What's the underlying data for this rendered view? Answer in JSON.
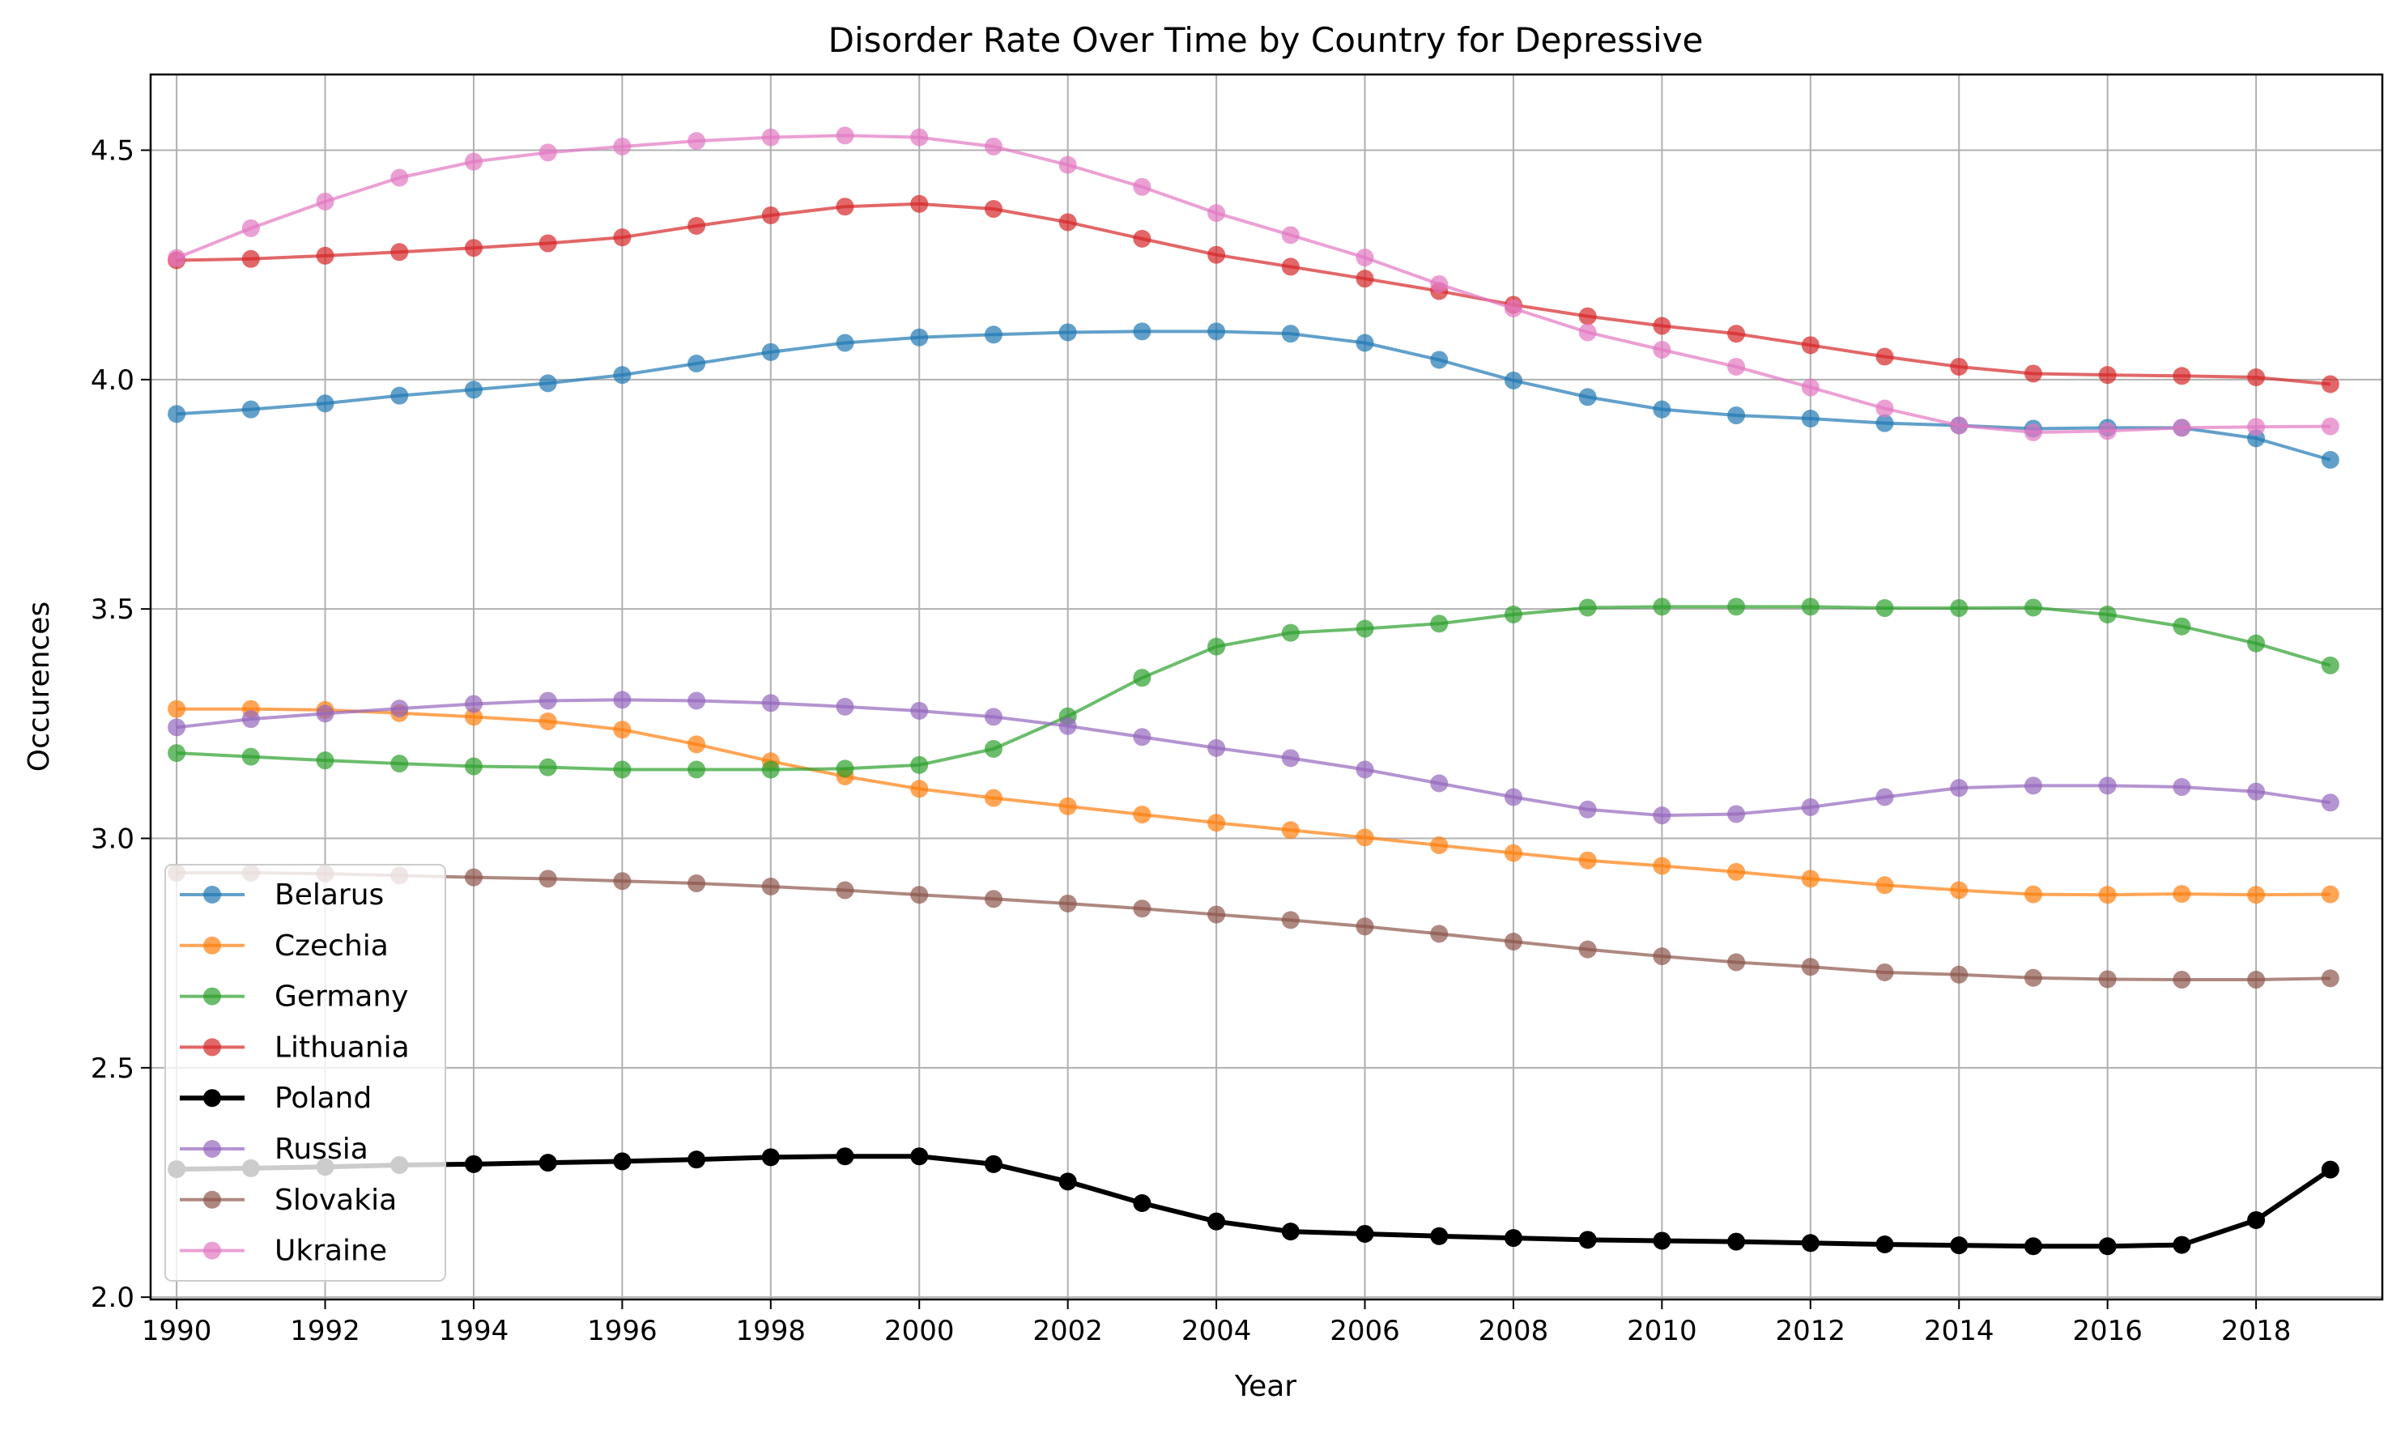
{
  "chart_data": {
    "type": "line",
    "title": "Disorder Rate Over Time by Country for Depressive",
    "xlabel": "Year",
    "ylabel": "Occurences",
    "x": [
      1990,
      1991,
      1992,
      1993,
      1994,
      1995,
      1996,
      1997,
      1998,
      1999,
      2000,
      2001,
      2002,
      2003,
      2004,
      2005,
      2006,
      2007,
      2008,
      2009,
      2010,
      2011,
      2012,
      2013,
      2014,
      2015,
      2016,
      2017,
      2018,
      2019
    ],
    "xticks": [
      "1990",
      "1992",
      "1994",
      "1996",
      "1998",
      "2000",
      "2002",
      "2004",
      "2006",
      "2008",
      "2010",
      "2012",
      "2014",
      "2016",
      "2018"
    ],
    "yticks": [
      "2.0",
      "2.5",
      "3.0",
      "3.5",
      "4.0",
      "4.5"
    ],
    "xlim": [
      1989.65,
      2019.7
    ],
    "ylim": [
      1.995,
      4.665
    ],
    "grid": true,
    "legend_position": "lower-left",
    "series": [
      {
        "name": "Belarus",
        "color": "#1f77b4",
        "values": [
          3.925,
          3.935,
          3.948,
          3.965,
          3.978,
          3.992,
          4.01,
          4.035,
          4.06,
          4.08,
          4.092,
          4.098,
          4.103,
          4.105,
          4.105,
          4.1,
          4.08,
          4.043,
          3.998,
          3.962,
          3.935,
          3.922,
          3.915,
          3.905,
          3.9,
          3.893,
          3.895,
          3.895,
          3.872,
          3.825
        ]
      },
      {
        "name": "Czechia",
        "color": "#ff7f0e",
        "values": [
          3.282,
          3.282,
          3.28,
          3.273,
          3.265,
          3.255,
          3.237,
          3.205,
          3.168,
          3.135,
          3.108,
          3.088,
          3.07,
          3.052,
          3.034,
          3.018,
          3.002,
          2.985,
          2.968,
          2.952,
          2.94,
          2.927,
          2.912,
          2.898,
          2.887,
          2.878,
          2.877,
          2.879,
          2.877,
          2.878
        ]
      },
      {
        "name": "Germany",
        "color": "#2ca02c",
        "values": [
          3.186,
          3.178,
          3.17,
          3.163,
          3.157,
          3.155,
          3.15,
          3.15,
          3.15,
          3.152,
          3.16,
          3.195,
          3.266,
          3.35,
          3.418,
          3.448,
          3.457,
          3.468,
          3.488,
          3.503,
          3.505,
          3.505,
          3.505,
          3.502,
          3.502,
          3.503,
          3.488,
          3.462,
          3.425,
          3.377
        ]
      },
      {
        "name": "Lithuania",
        "color": "#d62728",
        "values": [
          4.26,
          4.263,
          4.27,
          4.278,
          4.287,
          4.297,
          4.31,
          4.335,
          4.358,
          4.377,
          4.383,
          4.372,
          4.343,
          4.307,
          4.272,
          4.246,
          4.22,
          4.193,
          4.163,
          4.138,
          4.117,
          4.1,
          4.075,
          4.05,
          4.028,
          4.013,
          4.01,
          4.008,
          4.005,
          3.99
        ]
      },
      {
        "name": "Poland",
        "color": "#000000",
        "emphasis": true,
        "values": [
          2.279,
          2.281,
          2.284,
          2.288,
          2.29,
          2.293,
          2.296,
          2.3,
          2.305,
          2.307,
          2.307,
          2.29,
          2.252,
          2.205,
          2.165,
          2.143,
          2.138,
          2.133,
          2.129,
          2.125,
          2.123,
          2.121,
          2.118,
          2.115,
          2.113,
          2.111,
          2.111,
          2.114,
          2.168,
          2.278
        ]
      },
      {
        "name": "Russia",
        "color": "#9467bd",
        "values": [
          3.242,
          3.26,
          3.272,
          3.283,
          3.293,
          3.3,
          3.302,
          3.3,
          3.295,
          3.287,
          3.278,
          3.265,
          3.245,
          3.221,
          3.197,
          3.175,
          3.15,
          3.12,
          3.09,
          3.063,
          3.05,
          3.053,
          3.068,
          3.09,
          3.11,
          3.115,
          3.115,
          3.112,
          3.102,
          3.078
        ]
      },
      {
        "name": "Slovakia",
        "color": "#8c564b",
        "values": [
          2.925,
          2.925,
          2.923,
          2.919,
          2.915,
          2.912,
          2.907,
          2.902,
          2.895,
          2.887,
          2.877,
          2.868,
          2.858,
          2.847,
          2.834,
          2.822,
          2.808,
          2.792,
          2.775,
          2.758,
          2.743,
          2.73,
          2.72,
          2.708,
          2.703,
          2.696,
          2.693,
          2.692,
          2.692,
          2.695
        ]
      },
      {
        "name": "Ukraine",
        "color": "#e377c2",
        "values": [
          4.265,
          4.33,
          4.388,
          4.44,
          4.475,
          4.495,
          4.508,
          4.52,
          4.528,
          4.532,
          4.528,
          4.508,
          4.468,
          4.42,
          4.363,
          4.315,
          4.266,
          4.208,
          4.155,
          4.103,
          4.065,
          4.028,
          3.983,
          3.937,
          3.9,
          3.885,
          3.888,
          3.895,
          3.897,
          3.898
        ]
      }
    ]
  }
}
